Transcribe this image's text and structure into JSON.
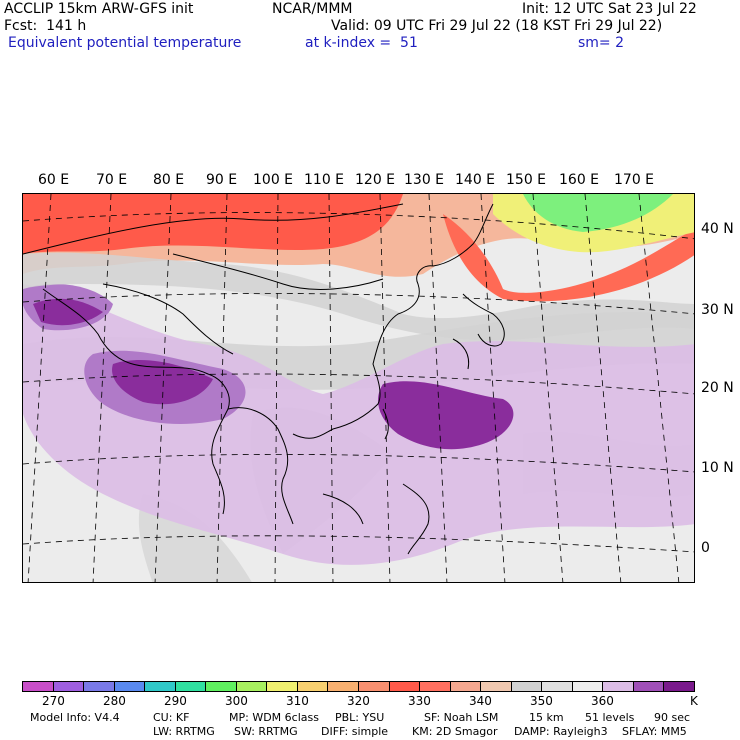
{
  "header": {
    "model_line": "ACCLIP 15km ARW-GFS init",
    "org": "NCAR/MMM",
    "init": "Init: 12 UTC Sat 23 Jul 22",
    "fcst": "Fcst:  141 h",
    "valid": "Valid: 09 UTC Fri 29 Jul 22 (18 KST Fri 29 Jul 22)",
    "field": "Equivalent potential temperature",
    "level": "at k-index =  51",
    "smoothing": "sm= 2"
  },
  "map": {
    "lon_labels": [
      "60 E",
      "70 E",
      "80 E",
      "90 E",
      "100 E",
      "110 E",
      "120 E",
      "130 E",
      "140 E",
      "150 E",
      "160 E",
      "170 E"
    ],
    "lat_labels": [
      "40 N",
      "30 N",
      "20 N",
      "10 N",
      "0"
    ],
    "colors": {
      "hot": "#ff5a4a",
      "warm": "#ff8a70",
      "peach": "#f5b79c",
      "gray_dark": "#c8c8c8",
      "gray_mid": "#dcdcdc",
      "gray_light": "#ededed",
      "lilac": "#dcbde6",
      "violet": "#b07ac8",
      "purple": "#8a2d9c",
      "green": "#7df07d",
      "yellow": "#f0f078"
    }
  },
  "colorbar": {
    "colors": [
      "#c84ec8",
      "#9f5fe0",
      "#7a7ae8",
      "#5a8af0",
      "#30c8c8",
      "#30e0a0",
      "#60f060",
      "#a8f060",
      "#f0f070",
      "#f8d070",
      "#f8b070",
      "#f89070",
      "#ff5a4a",
      "#ff7060",
      "#f5a890",
      "#f0c8b0",
      "#d2d2d2",
      "#e0e0e0",
      "#eeeeee",
      "#dcbde6",
      "#a050b8",
      "#7a1a8c"
    ],
    "ticks": [
      "270",
      "280",
      "290",
      "300",
      "310",
      "320",
      "330",
      "340",
      "350",
      "360"
    ],
    "unit": "K"
  },
  "footer": {
    "line1": [
      "Model Info: V4.4",
      "CU: KF",
      "MP: WDM 6class",
      "PBL: YSU",
      "SF: Noah LSM",
      "15 km",
      "51 levels",
      "90 sec"
    ],
    "line2": [
      "LW: RRTMG",
      "SW: RRTMG",
      "DIFF: simple",
      "KM: 2D Smagor",
      "DAMP: Rayleigh3",
      "SFLAY: MM5"
    ]
  }
}
